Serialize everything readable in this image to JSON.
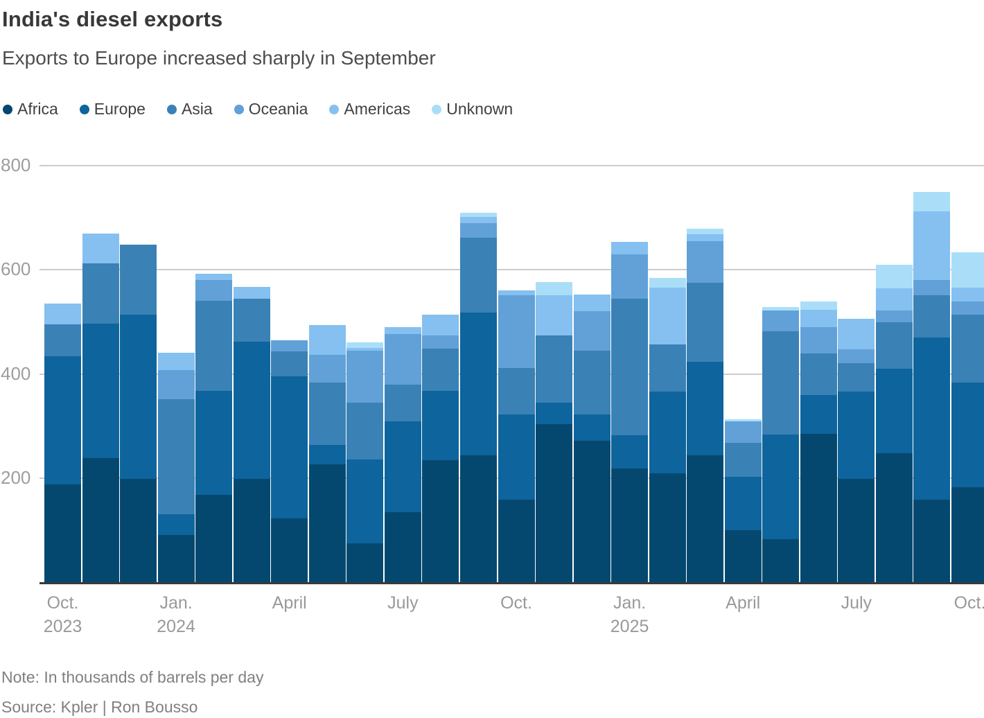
{
  "title": "India's diesel exports",
  "subtitle": "Exports to Europe increased sharply in September",
  "note": "Note: In thousands of barrels per day",
  "source": "Source: Kpler | Ron Bousso",
  "legend": [
    {
      "name": "Africa",
      "color": "#05486f"
    },
    {
      "name": "Europe",
      "color": "#0e649c"
    },
    {
      "name": "Asia",
      "color": "#3a81b5"
    },
    {
      "name": "Oceania",
      "color": "#61a1d8"
    },
    {
      "name": "Americas",
      "color": "#85c0f0"
    },
    {
      "name": "Unknown",
      "color": "#aadef8"
    }
  ],
  "chart_data": {
    "type": "bar",
    "stacked": true,
    "title": "India's diesel exports",
    "subtitle": "Exports to Europe increased sharply in September",
    "ylabel": "thousands of barrels per day",
    "ylim": [
      0,
      800
    ],
    "yticks": [
      200,
      400,
      600,
      800
    ],
    "grid": true,
    "legend_position": "top",
    "categories": [
      "Oct. 2023",
      "Nov. 2023",
      "Dec. 2023",
      "Jan. 2024",
      "Feb. 2024",
      "Mar. 2024",
      "Apr. 2024",
      "May 2024",
      "Jun. 2024",
      "Jul. 2024",
      "Aug. 2024",
      "Sep. 2024",
      "Oct. 2024",
      "Nov. 2024",
      "Dec. 2024",
      "Jan. 2025",
      "Feb. 2025",
      "Mar. 2025",
      "Apr. 2025",
      "May 2025",
      "Jun. 2025",
      "Jul. 2025",
      "Aug. 2025",
      "Sep. 2025",
      "Oct. 2025"
    ],
    "colors": {
      "Africa": "#05486f",
      "Europe": "#0e649c",
      "Asia": "#3a81b5",
      "Oceania": "#61a1d8",
      "Americas": "#85c0f0",
      "Unknown": "#aadef8"
    },
    "series": [
      {
        "name": "Africa",
        "values": [
          188,
          238,
          199,
          90,
          168,
          198,
          123,
          226,
          75,
          135,
          235,
          243,
          158,
          303,
          271,
          218,
          209,
          243,
          100,
          83,
          285,
          199,
          248,
          159,
          182
        ]
      },
      {
        "name": "Europe",
        "values": [
          246,
          258,
          315,
          41,
          199,
          264,
          272,
          38,
          161,
          174,
          133,
          275,
          164,
          42,
          51,
          64,
          157,
          180,
          103,
          201,
          75,
          167,
          162,
          311,
          201
        ]
      },
      {
        "name": "Asia",
        "values": [
          61,
          117,
          135,
          220,
          174,
          83,
          48,
          119,
          109,
          71,
          81,
          144,
          89,
          129,
          123,
          263,
          91,
          152,
          64,
          198,
          79,
          55,
          89,
          81,
          131
        ]
      },
      {
        "name": "Oceania",
        "values": [
          0,
          0,
          0,
          56,
          40,
          0,
          22,
          54,
          99,
          97,
          25,
          27,
          140,
          0,
          76,
          85,
          0,
          80,
          42,
          40,
          51,
          26,
          23,
          29,
          25
        ]
      },
      {
        "name": "Americas",
        "values": [
          40,
          56,
          0,
          33,
          11,
          22,
          0,
          57,
          6,
          13,
          40,
          13,
          10,
          77,
          32,
          24,
          109,
          13,
          0,
          0,
          33,
          59,
          42,
          132,
          27
        ]
      },
      {
        "name": "Unknown",
        "values": [
          0,
          0,
          0,
          0,
          0,
          0,
          0,
          0,
          11,
          0,
          0,
          8,
          0,
          26,
          0,
          0,
          19,
          11,
          4,
          7,
          16,
          0,
          45,
          37,
          68
        ]
      }
    ],
    "totals": [
      535,
      669,
      649,
      440,
      592,
      567,
      465,
      494,
      461,
      490,
      514,
      710,
      561,
      577,
      553,
      654,
      585,
      679,
      313,
      529,
      539,
      506,
      609,
      749,
      634
    ],
    "x_axis_labels": [
      {
        "text": "Oct.",
        "sub": "2023",
        "bar_index": 0
      },
      {
        "text": "Jan.",
        "sub": "2024",
        "bar_index": 3
      },
      {
        "text": "April",
        "sub": "",
        "bar_index": 6
      },
      {
        "text": "July",
        "sub": "",
        "bar_index": 9
      },
      {
        "text": "Oct.",
        "sub": "",
        "bar_index": 12
      },
      {
        "text": "Jan.",
        "sub": "2025",
        "bar_index": 15
      },
      {
        "text": "April",
        "sub": "",
        "bar_index": 18
      },
      {
        "text": "July",
        "sub": "",
        "bar_index": 21
      },
      {
        "text": "Oct.",
        "sub": "",
        "bar_index": 24
      }
    ]
  }
}
